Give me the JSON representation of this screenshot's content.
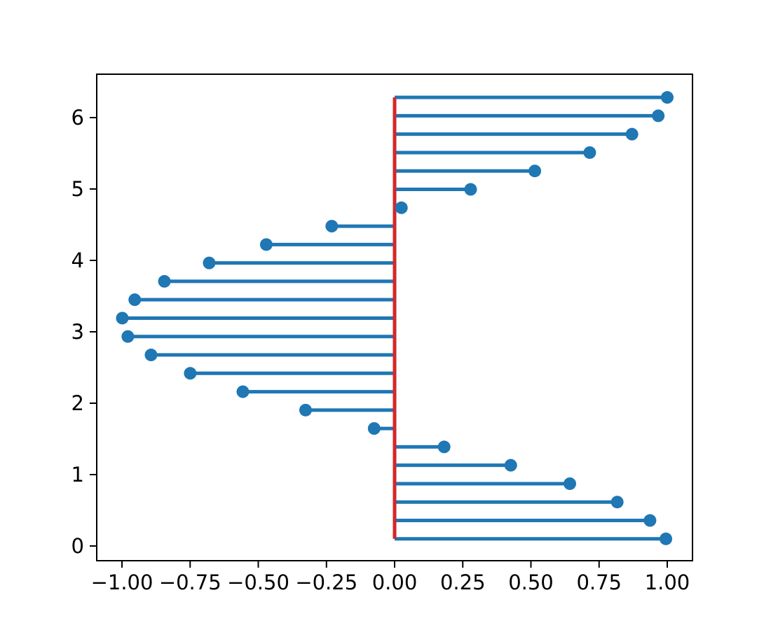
{
  "figure": {
    "background": "#ffffff"
  },
  "chart_data": {
    "type": "stem",
    "orientation": "horizontal",
    "title": "",
    "xlabel": "",
    "ylabel": "",
    "y": [
      0.1,
      0.3576,
      0.6153,
      0.8729,
      1.1305,
      1.3882,
      1.6458,
      1.9034,
      2.1611,
      2.4187,
      2.6763,
      2.934,
      3.1916,
      3.4492,
      3.7069,
      3.9645,
      4.2221,
      4.4798,
      4.7374,
      4.995,
      5.2526,
      5.5103,
      5.7679,
      6.0255,
      6.2832
    ],
    "x": [
      0.995,
      0.9367,
      0.8166,
      0.6427,
      0.426,
      0.1817,
      -0.075,
      -0.3266,
      -0.5566,
      -0.7497,
      -0.8934,
      -0.9785,
      -0.9988,
      -0.9531,
      -0.8444,
      -0.6801,
      -0.4707,
      -0.2305,
      0.0249,
      0.2788,
      0.5143,
      0.7157,
      0.8706,
      0.967,
      1.0
    ],
    "baseline_x": 0,
    "xlim": [
      -1.0926,
      1.0926
    ],
    "ylim": [
      -0.206,
      6.608
    ],
    "x_tick_values": [
      -1.0,
      -0.75,
      -0.5,
      -0.25,
      0.0,
      0.25,
      0.5,
      0.75,
      1.0
    ],
    "x_tick_labels": [
      "−1.00",
      "−0.75",
      "−0.50",
      "−0.25",
      "0.00",
      "0.25",
      "0.50",
      "0.75",
      "1.00"
    ],
    "y_tick_values": [
      0,
      1,
      2,
      3,
      4,
      5,
      6
    ],
    "y_tick_labels": [
      "0",
      "1",
      "2",
      "3",
      "4",
      "5",
      "6"
    ],
    "grid": false,
    "legend": null,
    "colors": {
      "stem": "#1f77b4",
      "marker": "#1f77b4",
      "baseline": "#d62728",
      "spine": "#000000",
      "tick": "#000000",
      "tick_label": "#000000",
      "background": "#ffffff"
    }
  }
}
